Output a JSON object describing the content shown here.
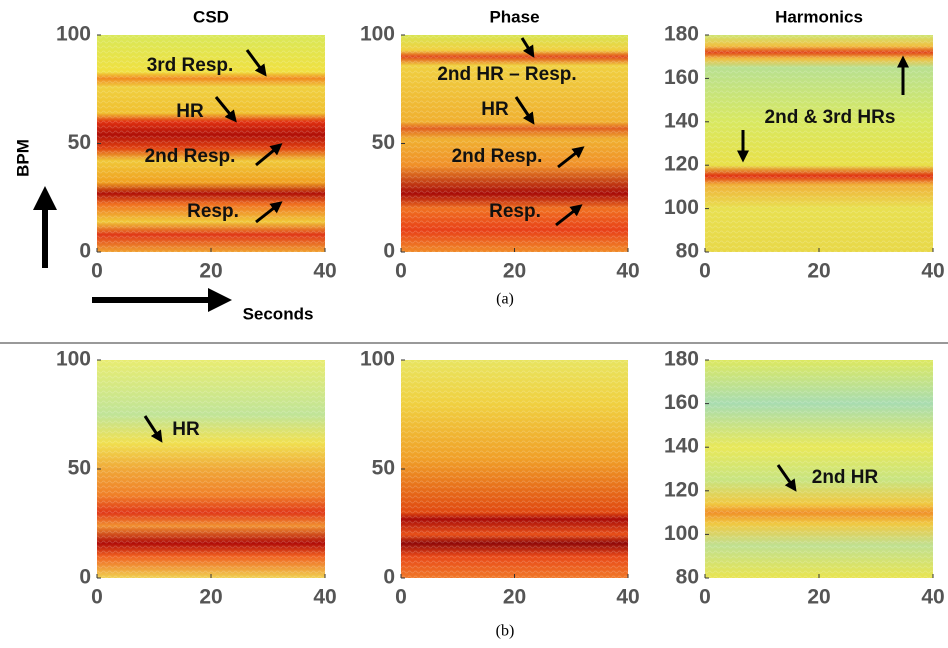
{
  "figure": {
    "ylabel": "BPM",
    "xlabel": "Seconds",
    "captions": [
      "(a)",
      "(b)"
    ]
  },
  "chart_data": [
    {
      "type": "heatmap",
      "title": "CSD",
      "xlim": [
        0,
        40
      ],
      "ylim": [
        0,
        100
      ],
      "xticks": [
        0,
        20,
        40
      ],
      "yticks": [
        0,
        50,
        100
      ],
      "annotations": [
        "3rd Resp.",
        "HR",
        "2nd Resp.",
        "Resp."
      ]
    },
    {
      "type": "heatmap",
      "title": "Phase",
      "xlim": [
        0,
        40
      ],
      "ylim": [
        0,
        100
      ],
      "xticks": [
        0,
        20,
        40
      ],
      "yticks": [
        0,
        50,
        100
      ],
      "annotations": [
        "2nd HR – Resp.",
        "HR",
        "2nd Resp.",
        "Resp."
      ]
    },
    {
      "type": "heatmap",
      "title": "Harmonics",
      "xlim": [
        0,
        40
      ],
      "ylim": [
        80,
        180
      ],
      "xticks": [
        0,
        20,
        40
      ],
      "yticks": [
        80,
        100,
        120,
        140,
        160,
        180
      ],
      "annotations": [
        "2nd & 3rd HRs"
      ]
    },
    {
      "type": "heatmap",
      "xlim": [
        0,
        40
      ],
      "ylim": [
        0,
        100
      ],
      "xticks": [
        0,
        20,
        40
      ],
      "yticks": [
        0,
        50,
        100
      ],
      "annotations": [
        "HR"
      ]
    },
    {
      "type": "heatmap",
      "xlim": [
        0,
        40
      ],
      "ylim": [
        0,
        100
      ],
      "xticks": [
        0,
        20,
        40
      ],
      "yticks": [
        0,
        50,
        100
      ]
    },
    {
      "type": "heatmap",
      "xlim": [
        0,
        40
      ],
      "ylim": [
        80,
        180
      ],
      "xticks": [
        0,
        20,
        40
      ],
      "yticks": [
        80,
        100,
        120,
        140,
        160,
        180
      ],
      "annotations": [
        "2nd HR"
      ]
    }
  ]
}
